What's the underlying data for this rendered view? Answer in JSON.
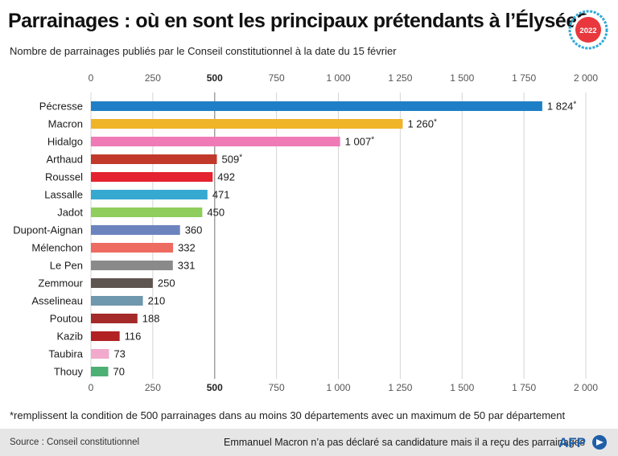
{
  "title": "Parrainages : où en sont les principaux prétendants à l’Élysée?",
  "subtitle": "Nombre de parrainages publiés par le Conseil constitutionnel à la date du 15 février",
  "badge_text": "2022",
  "footnote": "*remplissent la condition de 500 parrainages dans au moins 30 départements avec un maximum de 50 par département",
  "source": "Source : Conseil constitutionnel",
  "note": "Emmanuel Macron n’a pas déclaré sa candidature mais il a reçu des parrainages",
  "logo_text": "AFP",
  "colors": {
    "badge_ring": "#2fa8d8",
    "badge_inner": "#e8383d",
    "threshold_line": "#999999"
  },
  "chart_data": {
    "type": "bar",
    "orientation": "horizontal",
    "xlim": [
      0,
      2000
    ],
    "ticks": [
      0,
      250,
      500,
      750,
      1000,
      1250,
      1500,
      1750,
      2000
    ],
    "tick_labels": [
      "0",
      "250",
      "500",
      "750",
      "1 000",
      "1 250",
      "1 500",
      "1 750",
      "2 000"
    ],
    "threshold": 500,
    "categories": [
      "Pécresse",
      "Macron",
      "Hidalgo",
      "Arthaud",
      "Roussel",
      "Lassalle",
      "Jadot",
      "Dupont-Aignan",
      "Mélenchon",
      "Le Pen",
      "Zemmour",
      "Asselineau",
      "Poutou",
      "Kazib",
      "Taubira",
      "Thouy"
    ],
    "values": [
      1824,
      1260,
      1007,
      509,
      492,
      471,
      450,
      360,
      332,
      331,
      250,
      210,
      188,
      116,
      73,
      70
    ],
    "value_labels": [
      "1 824",
      "1 260",
      "1 007",
      "509",
      "492",
      "471",
      "450",
      "360",
      "332",
      "331",
      "250",
      "210",
      "188",
      "116",
      "73",
      "70"
    ],
    "starred": [
      true,
      true,
      true,
      true,
      false,
      false,
      false,
      false,
      false,
      false,
      false,
      false,
      false,
      false,
      false,
      false
    ],
    "bar_colors": [
      "#1f7fc6",
      "#f0b429",
      "#f07ab5",
      "#c0392b",
      "#e52330",
      "#36a9d1",
      "#8fcd5c",
      "#6b84bd",
      "#ee6b61",
      "#8a8a8a",
      "#5e5450",
      "#6f97ad",
      "#a52a2a",
      "#b22222",
      "#f1aacb",
      "#4caf73"
    ],
    "grid": true
  }
}
